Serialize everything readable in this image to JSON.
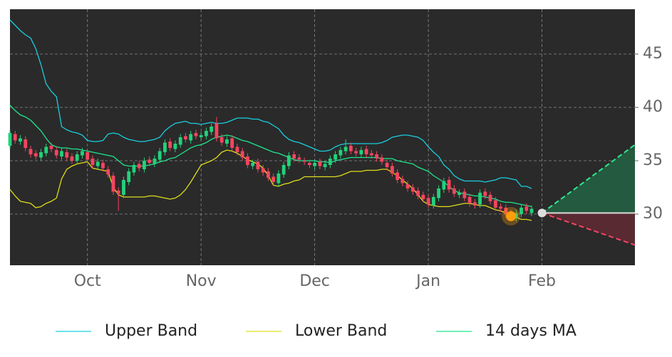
{
  "chart_data": {
    "type": "candlestick",
    "categories": [
      null,
      null,
      null,
      null,
      null,
      null,
      null,
      null,
      null,
      null,
      null,
      null,
      null,
      null,
      null,
      "Oct",
      null,
      null,
      null,
      null,
      null,
      null,
      null,
      null,
      null,
      null,
      null,
      null,
      null,
      null,
      null,
      null,
      null,
      null,
      null,
      null,
      null,
      "Nov",
      null,
      null,
      null,
      null,
      null,
      null,
      null,
      null,
      null,
      null,
      null,
      null,
      null,
      null,
      null,
      null,
      null,
      null,
      null,
      null,
      null,
      "Dec",
      null,
      null,
      null,
      null,
      null,
      null,
      null,
      null,
      null,
      null,
      null,
      null,
      null,
      null,
      null,
      null,
      null,
      null,
      null,
      null,
      null,
      "Jan",
      null,
      null,
      null,
      null,
      null,
      null,
      null,
      null,
      null,
      null,
      null,
      null,
      null,
      null,
      null,
      null,
      null,
      null,
      null,
      null,
      null,
      "Feb",
      null,
      null,
      null,
      null,
      null,
      null,
      null,
      null,
      null,
      null,
      null,
      null,
      null,
      null,
      null,
      null,
      null,
      null
    ],
    "open": [
      36.4,
      37.5,
      36.8,
      37.0,
      36.1,
      35.7,
      35.3,
      35.7,
      36.4,
      36.0,
      35.4,
      35.8,
      35.4,
      35.0,
      35.5,
      35.8,
      35.2,
      34.5,
      34.8,
      34.2,
      33.6,
      32.2,
      31.8,
      33.0,
      33.9,
      34.7,
      34.2,
      35.1,
      34.7,
      35.1,
      35.8,
      36.8,
      36.1,
      36.5,
      37.3,
      36.9,
      37.6,
      37.2,
      37.3,
      37.7,
      38.5,
      37.2,
      36.6,
      37.1,
      36.3,
      35.9,
      35.4,
      34.5,
      34.9,
      34.3,
      34.0,
      33.5,
      32.9,
      33.7,
      34.5,
      35.6,
      35.3,
      35.0,
      34.8,
      34.5,
      34.9,
      34.4,
      34.6,
      35.1,
      35.5,
      35.9,
      36.4,
      35.9,
      35.6,
      36.1,
      35.7,
      35.6,
      35.3,
      34.8,
      34.5,
      33.9,
      33.3,
      32.8,
      32.5,
      32.2,
      31.8,
      31.5,
      30.8,
      31.5,
      32.3,
      33.2,
      32.4,
      31.8,
      32.1,
      31.6,
      31.1,
      30.9,
      32.1,
      31.8,
      31.3,
      30.7,
      30.6,
      30.1,
      29.6,
      30.0,
      30.7,
      30.1,
      null,
      null,
      null,
      null,
      null,
      null,
      null,
      null,
      null,
      null,
      null,
      null,
      null,
      null,
      null,
      null,
      null,
      null,
      null,
      null
    ],
    "high": [
      37.9,
      37.8,
      37.4,
      37.3,
      36.4,
      36.0,
      36.1,
      36.6,
      36.7,
      36.3,
      36.2,
      36.1,
      35.7,
      35.9,
      36.2,
      36.1,
      35.5,
      35.2,
      35.1,
      34.5,
      33.9,
      32.5,
      33.5,
      34.3,
      34.9,
      35.0,
      35.3,
      35.4,
      35.5,
      36.2,
      37.0,
      37.1,
      36.9,
      37.5,
      37.6,
      37.8,
      37.9,
      37.7,
      38.1,
      38.5,
      39.1,
      37.5,
      37.3,
      37.4,
      36.6,
      36.2,
      35.7,
      35.1,
      35.2,
      34.6,
      34.3,
      33.8,
      34.1,
      34.9,
      35.8,
      35.9,
      35.6,
      35.3,
      35.1,
      35.1,
      35.2,
      35.0,
      35.5,
      35.9,
      36.3,
      37.0,
      36.7,
      36.2,
      36.3,
      36.4,
      36.0,
      35.9,
      35.6,
      35.1,
      34.8,
      34.2,
      33.6,
      33.1,
      32.8,
      32.5,
      32.1,
      31.8,
      31.9,
      32.7,
      33.4,
      33.5,
      32.7,
      32.3,
      32.4,
      31.9,
      31.4,
      32.3,
      32.4,
      32.1,
      31.6,
      31.0,
      30.9,
      30.4,
      30.4,
      30.9,
      31.0,
      30.8,
      null,
      null,
      null,
      null,
      null,
      null,
      null,
      null,
      null,
      null,
      null,
      null,
      null,
      null,
      null,
      null,
      null,
      null,
      null,
      null
    ],
    "low": [
      36.1,
      36.6,
      36.5,
      35.9,
      35.3,
      35.1,
      35.0,
      35.4,
      35.8,
      35.2,
      35.1,
      35.0,
      34.7,
      34.7,
      35.2,
      34.8,
      34.3,
      34.2,
      34.0,
      33.4,
      31.8,
      30.3,
      31.5,
      32.7,
      33.6,
      34.0,
      33.9,
      34.5,
      34.4,
      34.8,
      35.5,
      35.9,
      35.8,
      36.2,
      36.7,
      36.6,
      37.0,
      36.9,
      37.0,
      37.4,
      36.8,
      36.4,
      36.3,
      35.9,
      35.5,
      35.0,
      34.3,
      34.2,
      33.9,
      33.6,
      33.1,
      32.7,
      32.6,
      33.4,
      34.2,
      34.9,
      34.8,
      34.6,
      34.3,
      34.2,
      34.2,
      34.1,
      34.3,
      34.8,
      35.2,
      35.6,
      35.6,
      35.4,
      35.3,
      35.3,
      35.2,
      34.9,
      34.6,
      34.1,
      33.5,
      32.9,
      32.6,
      32.1,
      31.8,
      31.4,
      31.1,
      30.6,
      30.5,
      31.2,
      32.0,
      32.0,
      31.6,
      31.5,
      31.2,
      30.7,
      30.5,
      30.6,
      31.4,
      30.9,
      30.3,
      30.2,
      29.7,
      29.5,
      29.3,
      29.7,
      30.0,
      29.8,
      null,
      null,
      null,
      null,
      null,
      null,
      null,
      null,
      null,
      null,
      null,
      null,
      null,
      null,
      null,
      null,
      null,
      null,
      null,
      null
    ],
    "close": [
      37.6,
      36.9,
      37.1,
      36.2,
      35.6,
      35.4,
      35.8,
      36.3,
      36.1,
      35.5,
      35.9,
      35.3,
      35.0,
      35.6,
      35.9,
      35.1,
      34.6,
      34.9,
      34.3,
      33.7,
      32.1,
      31.9,
      33.2,
      34.0,
      34.6,
      34.3,
      35.0,
      34.8,
      35.2,
      35.9,
      36.7,
      36.2,
      36.6,
      37.2,
      37.0,
      37.5,
      37.3,
      37.4,
      37.8,
      38.2,
      37.1,
      36.7,
      37.0,
      36.2,
      35.8,
      35.3,
      34.6,
      34.8,
      34.2,
      33.9,
      33.4,
      33.0,
      33.8,
      34.6,
      35.5,
      35.2,
      35.1,
      34.9,
      34.6,
      34.8,
      34.5,
      34.7,
      35.2,
      35.6,
      36.0,
      36.3,
      35.9,
      35.7,
      36.0,
      35.6,
      35.5,
      35.2,
      34.9,
      34.4,
      33.8,
      33.2,
      32.9,
      32.4,
      32.1,
      31.7,
      31.4,
      30.9,
      31.6,
      32.4,
      33.1,
      32.3,
      31.9,
      32.0,
      31.5,
      31.0,
      30.8,
      32.0,
      31.7,
      31.2,
      30.6,
      30.5,
      30.0,
      29.8,
      30.1,
      30.6,
      30.3,
      30.5,
      null,
      null,
      null,
      null,
      null,
      null,
      null,
      null,
      null,
      null,
      null,
      null,
      null,
      null,
      null,
      null,
      null,
      null,
      null,
      null
    ],
    "up_color": "#22d27a",
    "down_color": "#f5455f",
    "series": [
      {
        "name": "Upper Band",
        "color": "#19cfe0",
        "values": [
          48.2,
          47.7,
          47.2,
          46.8,
          46.5,
          45.5,
          44,
          42.2,
          41.5,
          41,
          38.2,
          37.9,
          37.7,
          37.6,
          37.4,
          36.9,
          36.8,
          36.8,
          36.9,
          37.5,
          37.6,
          37.5,
          37.2,
          37,
          36.9,
          36.8,
          36.8,
          36.9,
          37,
          37.2,
          37.8,
          38.2,
          38.5,
          38.6,
          38.7,
          38.5,
          38.5,
          38.4,
          38.5,
          38.6,
          38.5,
          38.5,
          38.6,
          38.8,
          39,
          39,
          39,
          38.9,
          38.9,
          38.7,
          38.6,
          38.3,
          38,
          37.4,
          37,
          36.8,
          36.7,
          36.5,
          36.3,
          36.1,
          35.9,
          35.9,
          36,
          36.3,
          36.5,
          36.6,
          36.6,
          36.6,
          36.6,
          36.6,
          36.6,
          36.6,
          36.7,
          36.9,
          37.2,
          37.3,
          37.4,
          37.4,
          37.3,
          37.2,
          36.9,
          36.3,
          35.8,
          35.4,
          34.6,
          34.2,
          33.6,
          33.3,
          33.1,
          33.1,
          33.1,
          33.1,
          33,
          33.1,
          33.2,
          33.4,
          33.4,
          33.3,
          33.2,
          32.6,
          32.6,
          32.4,
          null,
          null,
          null,
          null,
          null,
          null,
          null,
          null,
          null,
          null,
          null,
          null,
          null,
          null,
          null,
          null,
          null,
          null,
          null,
          null
        ]
      },
      {
        "name": "Lower Band",
        "color": "#dede1c",
        "values": [
          32.3,
          31.7,
          31.2,
          31.1,
          31,
          30.6,
          30.7,
          31,
          31.2,
          31.5,
          33.3,
          34.2,
          34.5,
          34.7,
          34.8,
          34.9,
          34.3,
          34.2,
          34.1,
          34,
          32.5,
          31.8,
          31.6,
          31.6,
          31.6,
          31.6,
          31.6,
          31.7,
          31.7,
          31.6,
          31.5,
          31.4,
          31.5,
          31.8,
          32.3,
          33,
          33.8,
          34.6,
          34.8,
          35,
          35.3,
          35.8,
          36,
          35.9,
          35.7,
          35.4,
          35.1,
          34.9,
          34.7,
          34.3,
          33.6,
          32.7,
          32.6,
          32.8,
          32.9,
          33.1,
          33.2,
          33.5,
          33.5,
          33.5,
          33.5,
          33.5,
          33.5,
          33.5,
          33.6,
          33.8,
          34,
          34,
          34,
          34.1,
          34.1,
          34.1,
          34.2,
          34.2,
          33.9,
          33.6,
          33.2,
          32.8,
          32.4,
          31.8,
          31.2,
          30.9,
          30.8,
          30.7,
          30.7,
          30.7,
          30.8,
          30.9,
          31,
          31,
          30.9,
          30.8,
          30.8,
          30.6,
          30.4,
          30.3,
          30.1,
          29.9,
          29.7,
          29.5,
          29.5,
          29.4,
          null,
          null,
          null,
          null,
          null,
          null,
          null,
          null,
          null,
          null,
          null,
          null,
          null,
          null,
          null,
          null,
          null,
          null,
          null,
          null
        ]
      },
      {
        "name": "14 days MA",
        "color": "#1ee68c",
        "values": [
          40.2,
          39.7,
          39.3,
          39.1,
          38.8,
          38.3,
          37.8,
          37.1,
          36.5,
          36.3,
          36.2,
          36.2,
          36.1,
          36.1,
          36,
          35.9,
          35.8,
          35.7,
          35.6,
          35.5,
          35.4,
          35,
          34.6,
          34.5,
          34.5,
          34.5,
          34.5,
          34.6,
          34.7,
          34.9,
          35,
          35.2,
          35.3,
          35.6,
          35.9,
          36.2,
          36.4,
          36.5,
          36.7,
          37,
          37.2,
          37.3,
          37.4,
          37.3,
          37.1,
          36.9,
          36.8,
          36.6,
          36.4,
          36.2,
          36,
          35.8,
          35.7,
          35.5,
          35.3,
          35.1,
          35,
          35,
          35,
          35,
          34.9,
          34.9,
          34.8,
          35,
          35.1,
          35.2,
          35.3,
          35.3,
          35.3,
          35.3,
          35.3,
          35.3,
          35.2,
          35.2,
          35.2,
          35,
          34.9,
          34.8,
          34.7,
          34.4,
          34.2,
          34,
          33.6,
          33.3,
          33,
          32.6,
          32.2,
          32,
          31.9,
          31.8,
          31.7,
          31.7,
          31.6,
          31.5,
          31.4,
          31.2,
          31.1,
          31.1,
          31,
          30.9,
          30.8,
          30.7,
          null,
          null,
          null,
          null,
          null,
          null,
          null,
          null,
          null,
          null,
          null,
          null,
          null,
          null,
          null,
          null,
          null,
          null,
          null,
          null
        ]
      }
    ],
    "forecast": {
      "start": 30.1,
      "upper_end": 36.5,
      "lower_end": 27.1,
      "upper_color": "#2ee88f",
      "lower_color": "#f5455f",
      "upper_fill": "#245a3f",
      "lower_fill": "#5a2a33",
      "start_color": "#dddddd"
    },
    "highlight_color": "#ff9f0a",
    "ylim": [
      25.2,
      49.2
    ],
    "yticks": [
      30,
      35,
      40,
      45
    ],
    "grid": true,
    "legend": "bottom"
  }
}
